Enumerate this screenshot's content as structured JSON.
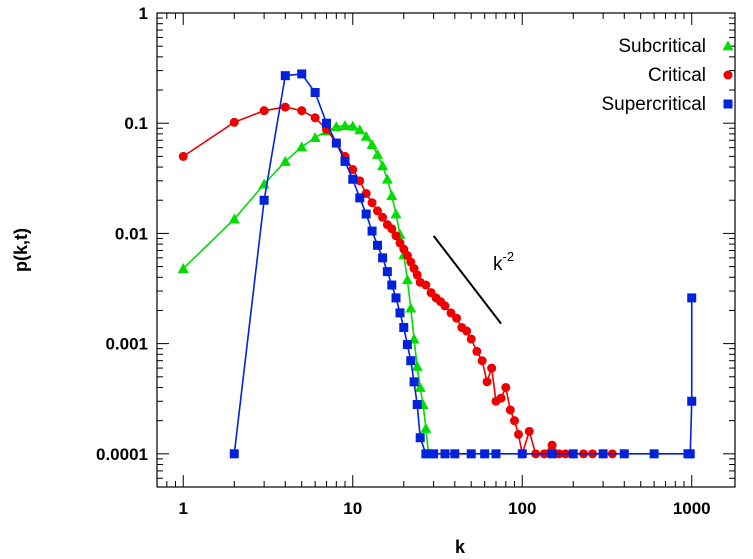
{
  "chart_data": {
    "type": "line",
    "xlabel": "k",
    "ylabel": "p(k,t)",
    "xscale": "log",
    "yscale": "log",
    "xlim": [
      0.7,
      1800
    ],
    "ylim": [
      5e-05,
      1
    ],
    "xticks": [
      1,
      10,
      100,
      1000
    ],
    "xtick_labels": [
      "1",
      "10",
      "100",
      "1000"
    ],
    "yticks": [
      1,
      0.1,
      0.01,
      0.001,
      0.0001
    ],
    "ytick_labels": [
      "1",
      "0.1",
      "0.01",
      "0.001",
      "0.0001"
    ],
    "grid": false,
    "legend_position": "top-right",
    "annotation": {
      "text": "k",
      "superscript": "-2",
      "line_x": [
        30,
        75
      ],
      "line_y": [
        0.0095,
        0.00152
      ]
    },
    "series": [
      {
        "name": "Subcritical",
        "color": "#00dd00",
        "marker": "triangle",
        "x": [
          1,
          2,
          3,
          4,
          5,
          6,
          7,
          8,
          9,
          10,
          11,
          12,
          13,
          14,
          15,
          16,
          17,
          18,
          19,
          20,
          21,
          22,
          23,
          24,
          25,
          26,
          27,
          28,
          29
        ],
        "y": [
          0.0048,
          0.0135,
          0.028,
          0.045,
          0.061,
          0.074,
          0.085,
          0.093,
          0.095,
          0.094,
          0.087,
          0.076,
          0.064,
          0.052,
          0.041,
          0.031,
          0.022,
          0.015,
          0.0098,
          0.0064,
          0.0038,
          0.0021,
          0.0011,
          0.00062,
          0.0004,
          0.00028,
          0.00017,
          0.0001,
          0.0001
        ]
      },
      {
        "name": "Critical",
        "color": "#ee0000",
        "marker": "circle",
        "x": [
          1,
          2,
          3,
          4,
          5,
          6,
          7,
          8,
          9,
          10,
          11,
          12,
          13,
          14,
          15,
          16,
          17,
          18,
          19,
          20,
          21,
          22,
          23,
          24,
          25,
          27,
          29,
          31,
          33,
          35,
          38,
          41,
          44,
          47,
          50,
          54,
          58,
          62,
          66,
          70,
          75,
          80,
          85,
          90,
          95,
          100,
          110,
          120,
          135,
          150,
          165,
          180,
          200,
          230,
          260,
          300,
          340
        ],
        "y": [
          0.05,
          0.102,
          0.13,
          0.14,
          0.13,
          0.112,
          0.088,
          0.066,
          0.05,
          0.038,
          0.03,
          0.023,
          0.019,
          0.016,
          0.014,
          0.012,
          0.011,
          0.0095,
          0.0082,
          0.0072,
          0.0063,
          0.0055,
          0.0048,
          0.0042,
          0.0036,
          0.0034,
          0.0029,
          0.0026,
          0.0024,
          0.0022,
          0.0019,
          0.0017,
          0.0014,
          0.0013,
          0.0011,
          0.00085,
          0.0007,
          0.00045,
          0.0006,
          0.0003,
          0.00032,
          0.0004,
          0.00025,
          0.0002,
          0.00015,
          0.0001,
          0.00016,
          0.0001,
          0.0001,
          0.00012,
          0.0001,
          0.0001,
          0.0001,
          0.0001,
          0.0001,
          0.0001,
          0.0001
        ]
      },
      {
        "name": "Supercritical",
        "color": "#0022dd",
        "marker": "square",
        "x": [
          2,
          3,
          4,
          5,
          6,
          7,
          8,
          9,
          10,
          11,
          12,
          13,
          14,
          15,
          16,
          17,
          18,
          19,
          20,
          21,
          22,
          23,
          24,
          25,
          27,
          30,
          35,
          40,
          50,
          60,
          70,
          100,
          150,
          200,
          300,
          400,
          600,
          950,
          980,
          1000,
          1000
        ],
        "y": [
          0.0001,
          0.02,
          0.27,
          0.28,
          0.19,
          0.1,
          0.066,
          0.045,
          0.031,
          0.021,
          0.015,
          0.0105,
          0.0078,
          0.006,
          0.0045,
          0.0034,
          0.0026,
          0.0019,
          0.0014,
          0.00098,
          0.0007,
          0.00045,
          0.00028,
          0.00014,
          0.0001,
          0.0001,
          0.0001,
          0.0001,
          0.0001,
          0.0001,
          0.0001,
          0.0001,
          0.0001,
          0.0001,
          0.0001,
          0.0001,
          0.0001,
          0.0001,
          0.0001,
          0.0003,
          0.0026
        ]
      }
    ]
  }
}
